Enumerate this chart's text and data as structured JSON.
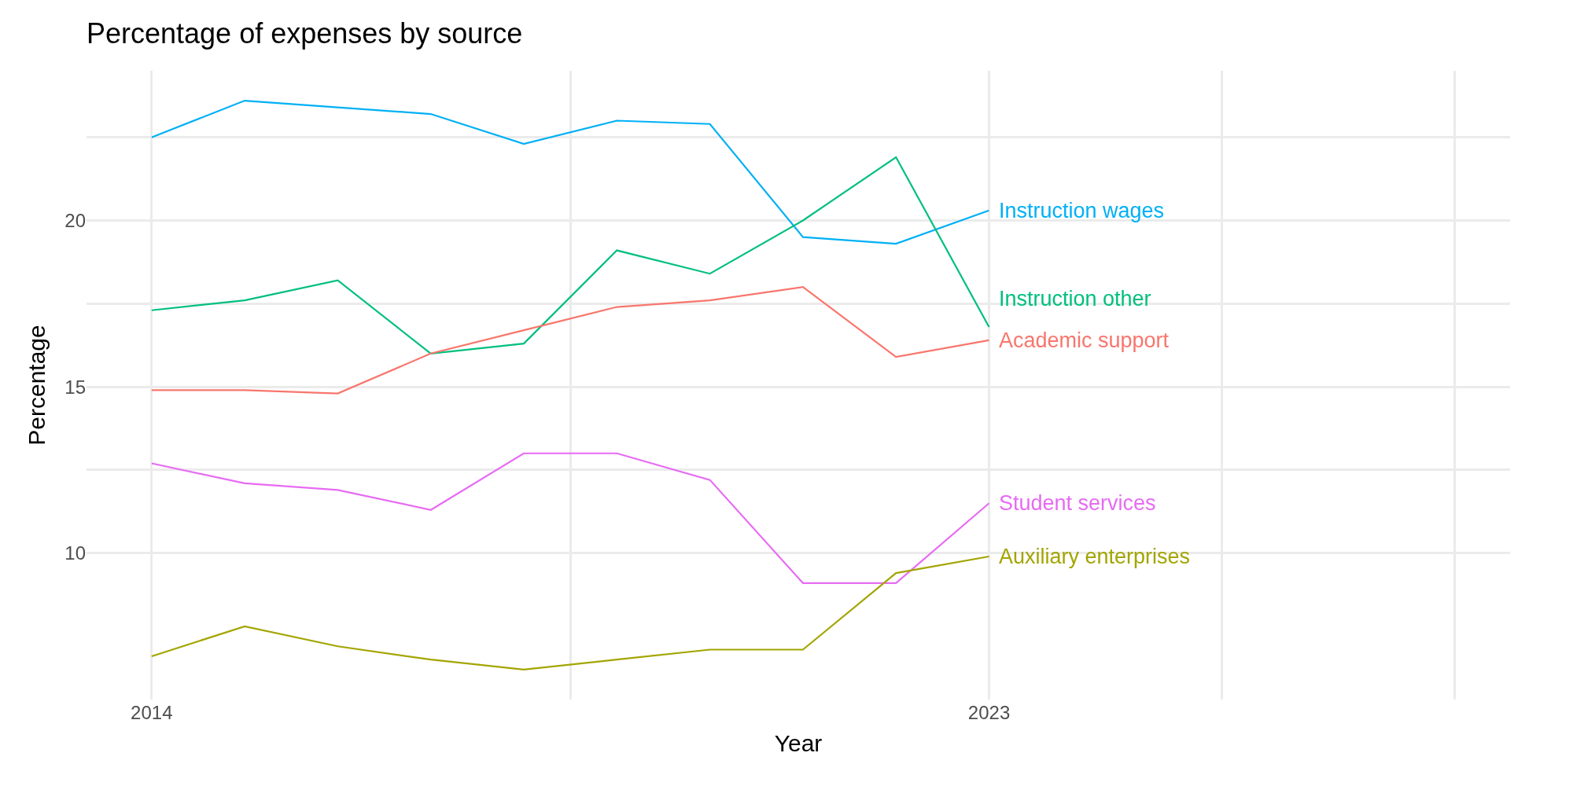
{
  "chart_data": {
    "type": "line",
    "title": "Percentage of expenses by source",
    "xlabel": "Year",
    "ylabel": "Percentage",
    "x": [
      2014,
      2015,
      2016,
      2017,
      2018,
      2019,
      2020,
      2021,
      2022,
      2023
    ],
    "series": [
      {
        "name": "Instruction wages",
        "color": "#00b0f6",
        "values": [
          22.5,
          23.6,
          23.4,
          23.2,
          22.3,
          23.0,
          22.9,
          19.5,
          19.3,
          20.3
        ]
      },
      {
        "name": "Instruction other",
        "color": "#00bf7d",
        "values": [
          17.3,
          17.6,
          18.2,
          16.0,
          16.3,
          19.1,
          18.4,
          20.0,
          21.9,
          16.8
        ]
      },
      {
        "name": "Academic support",
        "color": "#f8766d",
        "values": [
          14.9,
          14.9,
          14.8,
          16.0,
          16.7,
          17.4,
          17.6,
          18.0,
          15.9,
          16.4
        ]
      },
      {
        "name": "Student services",
        "color": "#e76bf3",
        "values": [
          12.7,
          12.1,
          11.9,
          11.3,
          13.0,
          13.0,
          12.2,
          9.1,
          9.1,
          11.5
        ]
      },
      {
        "name": "Auxiliary enterprises",
        "color": "#a3a500",
        "values": [
          6.9,
          7.8,
          7.2,
          6.8,
          6.5,
          6.8,
          7.1,
          7.1,
          9.4,
          9.9
        ]
      }
    ],
    "xlim": [
      2013.3,
      2028.6
    ],
    "xticks": [
      2014,
      {
        "value": 2018.5,
        "label": null
      },
      2023,
      {
        "value": 2025.5,
        "label": null
      },
      {
        "value": 2028,
        "label": null
      }
    ],
    "ylim": [
      5.6,
      24.5
    ],
    "yticks": [
      10,
      {
        "value": 12.5,
        "label": null
      },
      15,
      {
        "value": 17.5,
        "label": null
      },
      20,
      {
        "value": 22.5,
        "label": null
      }
    ],
    "grid": true,
    "legend": false,
    "marker": "none",
    "line_style": "solid"
  }
}
